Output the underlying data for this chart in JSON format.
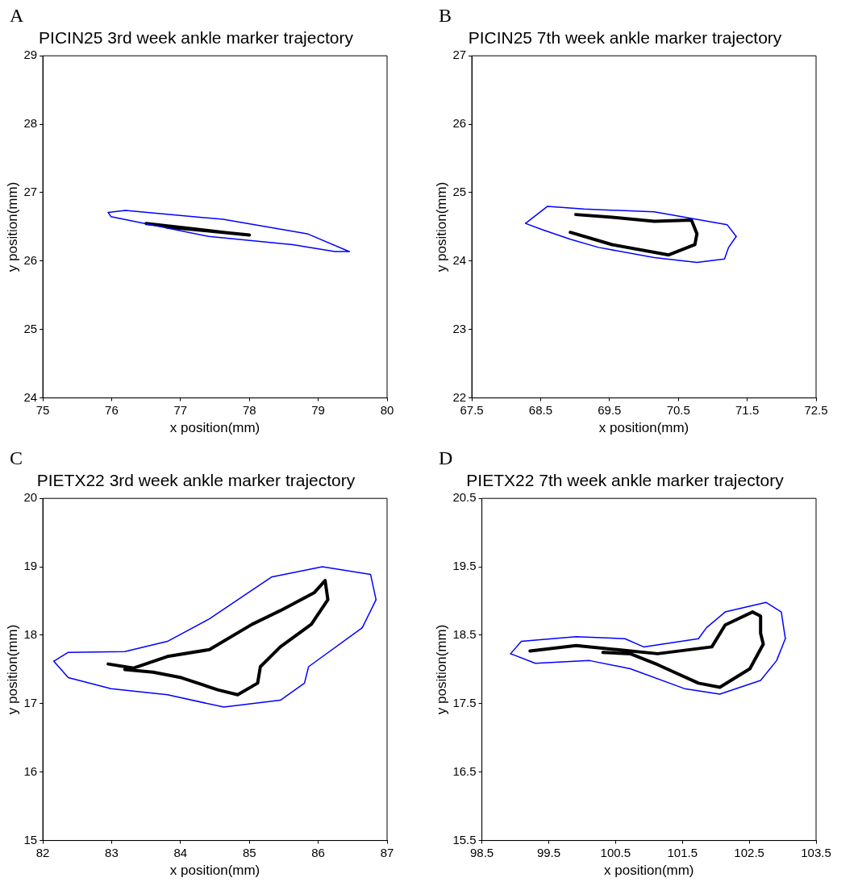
{
  "chart_data": [
    {
      "type": "line",
      "title": "PICIN25 3rd week ankle marker trajectory",
      "xlabel": "x position(mm)",
      "ylabel": "y position(mm)",
      "annotations": [
        "A"
      ],
      "xlim": [
        75,
        80
      ],
      "xticks": [
        75,
        76,
        77,
        78,
        79,
        80
      ],
      "ylim": [
        24,
        29
      ],
      "yticks": [
        24,
        25,
        26,
        27,
        28,
        29
      ],
      "grid": false,
      "legend": false,
      "marker": "none",
      "line_style": "solid",
      "series": [
        {
          "type": "line",
          "color": "#0000ff",
          "x": [
            75.95,
            76.2,
            77.62,
            78.84,
            79.45
          ],
          "values": [
            26.71,
            26.74,
            26.61,
            26.4,
            26.14
          ]
        },
        {
          "type": "line",
          "color": "#0000ff",
          "x": [
            75.95,
            75.99,
            77.41,
            78.63,
            79.24,
            79.45
          ],
          "values": [
            26.71,
            26.65,
            26.36,
            26.24,
            26.14,
            26.14
          ]
        },
        {
          "type": "line",
          "color": "#000000",
          "x": [
            76.5,
            77.2,
            77.8,
            78.0,
            77.5,
            76.8
          ],
          "values": [
            26.55,
            26.47,
            26.4,
            26.38,
            26.43,
            26.5
          ]
        }
      ]
    },
    {
      "type": "line",
      "title": "PICIN25 7th week ankle marker trajectory",
      "xlabel": "x position(mm)",
      "ylabel": "y position(mm)",
      "annotations": [
        "B"
      ],
      "xlim": [
        67.5,
        72.5
      ],
      "xticks": [
        67.5,
        68.5,
        69.5,
        70.5,
        71.5,
        72.5
      ],
      "ylim": [
        22,
        27
      ],
      "yticks": [
        22,
        23,
        24,
        25,
        26,
        27
      ],
      "grid": false,
      "legend": false,
      "marker": "none",
      "line_style": "solid",
      "series": [
        {
          "type": "line",
          "color": "#0000ff",
          "x": [
            68.28,
            68.6,
            69.13,
            70.15,
            71.21,
            71.34
          ],
          "values": [
            24.55,
            24.8,
            24.76,
            24.72,
            24.53,
            24.36
          ]
        },
        {
          "type": "line",
          "color": "#0000ff",
          "x": [
            68.28,
            68.52,
            68.93,
            69.34,
            70.15,
            70.77,
            71.17,
            71.23,
            71.34
          ],
          "values": [
            24.55,
            24.46,
            24.32,
            24.2,
            24.05,
            23.98,
            24.03,
            24.2,
            24.36
          ]
        },
        {
          "type": "line",
          "color": "#000000",
          "x": [
            68.93,
            69.54,
            70.36,
            70.74,
            70.77,
            70.69,
            70.15,
            69.54,
            69.01
          ],
          "values": [
            24.42,
            24.24,
            24.09,
            24.24,
            24.4,
            24.6,
            24.58,
            24.64,
            24.68
          ]
        }
      ]
    },
    {
      "type": "line",
      "title": "PIETX22 3rd week ankle marker trajectory",
      "xlabel": "x position(mm)",
      "ylabel": "y position(mm)",
      "annotations": [
        "C"
      ],
      "xlim": [
        82,
        87
      ],
      "xticks": [
        82,
        83,
        84,
        85,
        86,
        87
      ],
      "ylim": [
        15,
        20
      ],
      "yticks": [
        15,
        16,
        17,
        18,
        19,
        20
      ],
      "grid": false,
      "legend": false,
      "marker": "none",
      "line_style": "solid",
      "series": [
        {
          "type": "line",
          "color": "#0000ff",
          "x": [
            82.16,
            82.37,
            83.19,
            83.81,
            84.42,
            85.32,
            86.06,
            86.76,
            86.84
          ],
          "values": [
            17.62,
            17.75,
            17.76,
            17.91,
            18.24,
            18.85,
            19.0,
            18.89,
            18.52
          ]
        },
        {
          "type": "line",
          "color": "#0000ff",
          "x": [
            82.16,
            82.37,
            82.99,
            83.81,
            84.63,
            85.45,
            85.8,
            85.86,
            86.64,
            86.84
          ],
          "values": [
            17.62,
            17.38,
            17.22,
            17.13,
            16.95,
            17.05,
            17.3,
            17.54,
            18.11,
            18.52
          ]
        },
        {
          "type": "line",
          "color": "#000000",
          "x": [
            82.95,
            83.32,
            83.81,
            84.42,
            85.04,
            85.45,
            85.94,
            86.1,
            86.14,
            85.9,
            85.45,
            85.16,
            85.12,
            84.83,
            84.55,
            84.01,
            83.6,
            83.19
          ],
          "values": [
            17.58,
            17.52,
            17.69,
            17.79,
            18.16,
            18.36,
            18.62,
            18.8,
            18.52,
            18.16,
            17.83,
            17.54,
            17.3,
            17.13,
            17.2,
            17.38,
            17.46,
            17.5
          ]
        }
      ]
    },
    {
      "type": "line",
      "title": "PIETX22 7th week ankle marker trajectory",
      "xlabel": "x position(mm)",
      "ylabel": "y position(mm)",
      "annotations": [
        "D"
      ],
      "xlim": [
        98.5,
        103.5
      ],
      "xticks": [
        98.5,
        99.5,
        100.5,
        101.5,
        102.5,
        103.5
      ],
      "ylim": [
        15.5,
        20.5
      ],
      "yticks": [
        15.5,
        16.5,
        17.5,
        18.5,
        19.5,
        20.5
      ],
      "grid": false,
      "legend": false,
      "marker": "none",
      "line_style": "solid",
      "series": [
        {
          "type": "line",
          "color": "#0000ff",
          "x": [
            98.93,
            99.09,
            99.91,
            100.64,
            100.92,
            101.74,
            101.86,
            102.14,
            102.75,
            102.98,
            103.04
          ],
          "values": [
            18.23,
            18.41,
            18.48,
            18.45,
            18.33,
            18.45,
            18.61,
            18.84,
            18.98,
            18.84,
            18.45
          ]
        },
        {
          "type": "line",
          "color": "#0000ff",
          "x": [
            98.93,
            99.3,
            100.11,
            100.72,
            101.53,
            102.06,
            102.67,
            102.91,
            103.04
          ],
          "values": [
            18.23,
            18.09,
            18.13,
            18.01,
            17.72,
            17.64,
            17.84,
            18.13,
            18.45
          ]
        },
        {
          "type": "line",
          "color": "#000000",
          "x": [
            99.22,
            99.91,
            100.52,
            101.13,
            101.94,
            102.14,
            102.55,
            102.67,
            102.67,
            102.71,
            102.51,
            102.06,
            101.74,
            101.13,
            100.72,
            100.31
          ],
          "values": [
            18.27,
            18.35,
            18.29,
            18.23,
            18.33,
            18.65,
            18.84,
            18.78,
            18.53,
            18.37,
            18.01,
            17.74,
            17.8,
            18.07,
            18.23,
            18.25
          ]
        }
      ]
    }
  ]
}
